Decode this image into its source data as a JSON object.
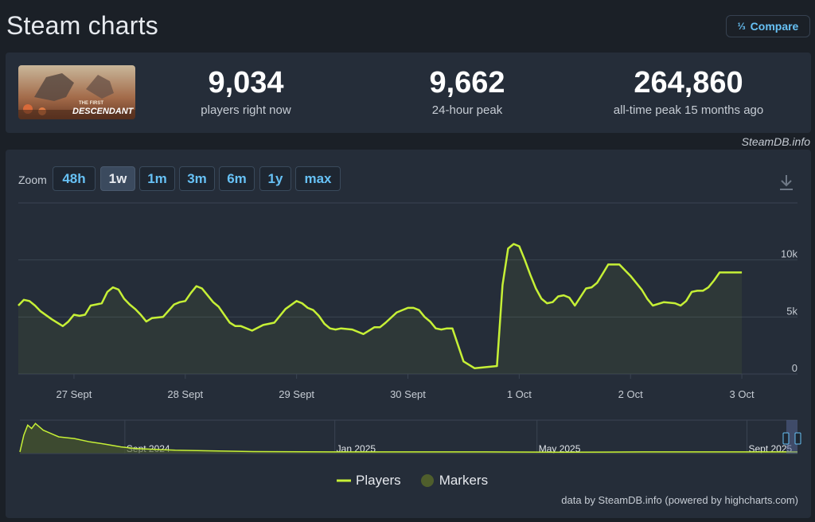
{
  "header": {
    "title": "Steam charts",
    "compare_label": "Compare",
    "compare_icon": "fraction-icon"
  },
  "stats": {
    "game_logo_text_1": "THE FIRST",
    "game_logo_text_2": "DESCENDANT",
    "players_now": "9,034",
    "players_now_label": "players right now",
    "peak_24h": "9,662",
    "peak_24h_label": "24-hour peak",
    "all_time_peak": "264,860",
    "all_time_peak_label": "all-time peak 15 months ago"
  },
  "attribution": "SteamDB.info",
  "zoom": {
    "label": "Zoom",
    "buttons": [
      "48h",
      "1w",
      "1m",
      "3m",
      "6m",
      "1y",
      "max"
    ],
    "active": "1w"
  },
  "legend": {
    "players": "Players",
    "markers": "Markers"
  },
  "credits": "data by SteamDB.info (powered by highcharts.com)",
  "colors": {
    "line": "#c6f036",
    "accent": "#67c1f5",
    "panel": "#252d39",
    "background": "#1b2027"
  },
  "chart_data": [
    {
      "type": "line",
      "x_tick_labels": [
        "27 Sept",
        "28 Sept",
        "29 Sept",
        "30 Sept",
        "1 Oct",
        "2 Oct",
        "3 Oct"
      ],
      "y_tick_labels": [
        "0",
        "5k",
        "10k"
      ],
      "ylim": [
        0,
        15000
      ],
      "xlim": [
        0,
        7.0
      ],
      "grid": true,
      "series": [
        {
          "name": "Players",
          "x": [
            0,
            0.05,
            0.1,
            0.15,
            0.2,
            0.3,
            0.4,
            0.45,
            0.5,
            0.55,
            0.6,
            0.65,
            0.7,
            0.75,
            0.8,
            0.85,
            0.9,
            0.95,
            1.0,
            1.05,
            1.1,
            1.15,
            1.2,
            1.3,
            1.4,
            1.45,
            1.5,
            1.55,
            1.6,
            1.65,
            1.7,
            1.75,
            1.8,
            1.85,
            1.9,
            1.95,
            2.0,
            2.1,
            2.2,
            2.3,
            2.4,
            2.5,
            2.55,
            2.6,
            2.65,
            2.7,
            2.75,
            2.8,
            2.85,
            2.9,
            3.0,
            3.1,
            3.2,
            3.25,
            3.3,
            3.4,
            3.5,
            3.55,
            3.6,
            3.65,
            3.7,
            3.75,
            3.8,
            3.85,
            3.9,
            4.0,
            4.1,
            4.2,
            4.3,
            4.35,
            4.4,
            4.45,
            4.5,
            4.55,
            4.6,
            4.65,
            4.7,
            4.75,
            4.8,
            4.85,
            4.9,
            4.95,
            5.0,
            5.1,
            5.15,
            5.2,
            5.25,
            5.3,
            5.35,
            5.4,
            5.5,
            5.55,
            5.6,
            5.65,
            5.7,
            5.8,
            5.9,
            5.95,
            6.0,
            6.05,
            6.1,
            6.15,
            6.2,
            6.25,
            6.3,
            6.35,
            6.4,
            6.45,
            6.5
          ],
          "values": [
            6000,
            6500,
            6400,
            6000,
            5500,
            4800,
            4200,
            4600,
            5200,
            5100,
            5200,
            6000,
            6100,
            6200,
            7200,
            7600,
            7400,
            6600,
            6100,
            5700,
            5200,
            4600,
            4900,
            5000,
            6100,
            6300,
            6400,
            7100,
            7700,
            7500,
            6900,
            6300,
            5900,
            5200,
            4500,
            4200,
            4200,
            3800,
            4300,
            4500,
            5700,
            6400,
            6200,
            5800,
            5600,
            5100,
            4400,
            4000,
            3900,
            4000,
            3900,
            3500,
            4100,
            4100,
            4500,
            5400,
            5800,
            5800,
            5600,
            5000,
            4600,
            4000,
            3900,
            4000,
            4000,
            1100,
            500,
            600,
            700,
            7800,
            11000,
            11400,
            11200,
            10000,
            8700,
            7500,
            6600,
            6200,
            6300,
            6800,
            6900,
            6700,
            6000,
            7500,
            7600,
            8000,
            8800,
            9600,
            9600,
            9600,
            8600,
            8000,
            7400,
            6600,
            6000,
            6300,
            6200,
            6000,
            6400,
            7200,
            7300,
            7300,
            7600,
            8200,
            8900,
            8900,
            8900,
            8900,
            8900
          ]
        }
      ]
    },
    {
      "type": "area",
      "x_tick_labels": [
        "Sept 2024",
        "Jan 2025",
        "May 2025",
        "Sept 2025"
      ],
      "series": [
        {
          "name": "Players",
          "x": [
            0,
            0.005,
            0.01,
            0.015,
            0.02,
            0.03,
            0.04,
            0.05,
            0.07,
            0.09,
            0.11,
            0.13,
            0.15,
            0.2,
            0.3,
            0.4,
            0.5,
            0.6,
            0.7,
            0.8,
            0.9,
            0.93,
            0.96,
            1.0
          ],
          "values": [
            0.05,
            0.55,
            0.85,
            0.75,
            0.9,
            0.7,
            0.6,
            0.5,
            0.45,
            0.35,
            0.28,
            0.2,
            0.15,
            0.1,
            0.06,
            0.05,
            0.05,
            0.05,
            0.04,
            0.05,
            0.05,
            0.05,
            0.05,
            0.05
          ]
        }
      ]
    }
  ]
}
